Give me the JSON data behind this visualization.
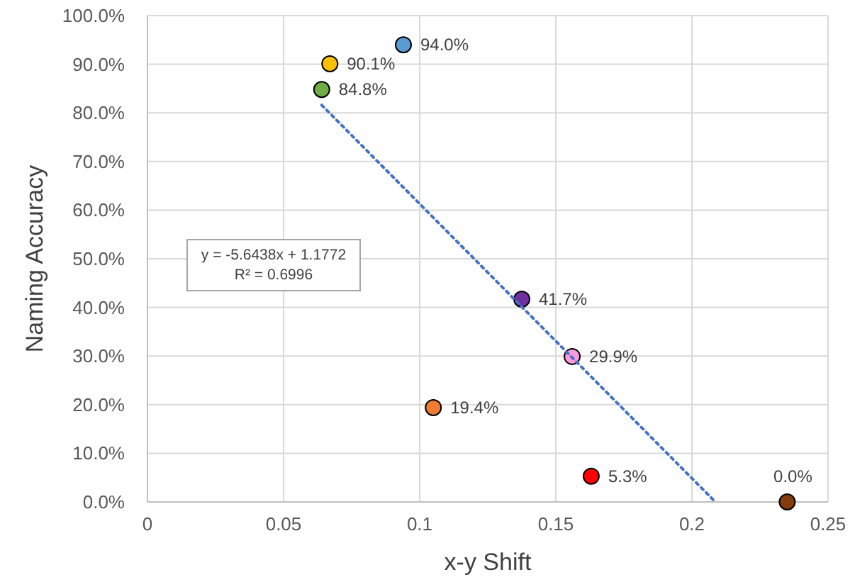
{
  "chart_data": {
    "type": "scatter",
    "xlabel": "x-y Shift",
    "ylabel": "Naming Accuracy",
    "xlim": [
      0,
      0.25
    ],
    "xticks": [
      0,
      0.05,
      0.1,
      0.15,
      0.2,
      0.25
    ],
    "ylim": [
      0,
      100
    ],
    "yticks": [
      {
        "value": 0,
        "label": "0.0%"
      },
      {
        "value": 10,
        "label": "10.0%"
      },
      {
        "value": 20,
        "label": "20.0%"
      },
      {
        "value": 30,
        "label": "30.0%"
      },
      {
        "value": 40,
        "label": "40.0%"
      },
      {
        "value": 50,
        "label": "50.0%"
      },
      {
        "value": 60,
        "label": "60.0%"
      },
      {
        "value": 70,
        "label": "70.0%"
      },
      {
        "value": 80,
        "label": "80.0%"
      },
      {
        "value": 90,
        "label": "90.0%"
      },
      {
        "value": 100,
        "label": "100.0%"
      }
    ],
    "grid": true,
    "series": [
      {
        "marker": "circle",
        "x": [
          0.094,
          0.067,
          0.064,
          0.1375,
          0.156,
          0.105,
          0.163,
          0.235
        ],
        "values": [
          94.0,
          90.1,
          84.8,
          41.7,
          29.9,
          19.4,
          5.3,
          0.0
        ],
        "colors": [
          "#5b9bd5",
          "#ffc000",
          "#70ad47",
          "#7030a0",
          "#ff99dd",
          "#ed7d31",
          "#ff0000",
          "#843c0c"
        ],
        "value_labels": [
          "94.0%",
          "90.1%",
          "84.8%",
          "41.7%",
          "29.9%",
          "19.4%",
          "5.3%",
          "0.0%"
        ]
      },
      {
        "type": "line",
        "x": [
          0.064,
          0.2086
        ],
        "values": [
          81.6,
          0
        ],
        "color": "#4472c4",
        "line_style": "dotted",
        "marker": "none"
      }
    ],
    "annotations": [
      "y = -5.6438x + 1.1772",
      "R² = 0.6996"
    ]
  }
}
